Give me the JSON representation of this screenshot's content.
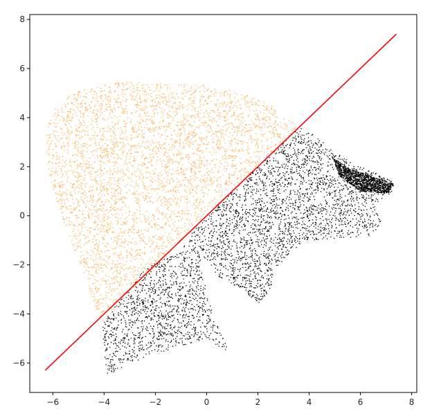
{
  "chart_data": {
    "type": "scatter",
    "title": "",
    "xlabel": "",
    "ylabel": "",
    "xlim": [
      -6.9,
      8.2
    ],
    "ylim": [
      -7.2,
      8.2
    ],
    "xticks": [
      -6,
      -4,
      -2,
      0,
      2,
      4,
      6,
      8
    ],
    "yticks": [
      -6,
      -4,
      -2,
      0,
      2,
      4,
      6,
      8
    ],
    "xtick_labels": [
      "−6",
      "−4",
      "−2",
      "0",
      "2",
      "4",
      "6",
      "8"
    ],
    "ytick_labels": [
      "−6",
      "−4",
      "−2",
      "0",
      "2",
      "4",
      "6",
      "8"
    ],
    "grid": false,
    "legend": "none",
    "series": [
      {
        "kind": "scatter",
        "color": "#ffbf70",
        "description_points": "dense point cloud above the diagonal line; bounding outline (x, y)",
        "outline": [
          [
            -4.1,
            -4.4
          ],
          [
            -4.5,
            -3.2
          ],
          [
            -5.0,
            -1.8
          ],
          [
            -5.6,
            -0.2
          ],
          [
            -6.1,
            1.5
          ],
          [
            -6.3,
            2.8
          ],
          [
            -6.25,
            3.6
          ],
          [
            -5.9,
            4.4
          ],
          [
            -5.2,
            5.0
          ],
          [
            -4.2,
            5.35
          ],
          [
            -3.0,
            5.45
          ],
          [
            -1.5,
            5.42
          ],
          [
            0.0,
            5.3
          ],
          [
            1.5,
            5.0
          ],
          [
            2.6,
            4.45
          ],
          [
            3.6,
            3.6
          ],
          [
            -0.5,
            -0.5
          ],
          [
            -4.1,
            -4.4
          ]
        ],
        "count": 2600
      },
      {
        "kind": "scatter",
        "color": "#000000",
        "description_points": "dense point cloud below the diagonal line; polygon regions (x, y)",
        "regions": [
          [
            [
              -0.5,
              -0.5
            ],
            [
              3.6,
              3.6
            ],
            [
              4.2,
              3.3
            ],
            [
              5.0,
              2.6
            ],
            [
              6.0,
              2.0
            ],
            [
              6.9,
              1.7
            ],
            [
              7.35,
              1.3
            ],
            [
              7.25,
              0.8
            ],
            [
              6.5,
              0.5
            ],
            [
              6.8,
              -0.2
            ],
            [
              6.5,
              -0.8
            ],
            [
              5.5,
              -0.9
            ],
            [
              3.8,
              -1.0
            ],
            [
              2.6,
              -2.2
            ],
            [
              2.5,
              -3.0
            ],
            [
              2.0,
              -3.6
            ],
            [
              1.4,
              -3.0
            ],
            [
              0.5,
              -2.5
            ],
            [
              -0.2,
              -1.6
            ]
          ],
          [
            [
              -0.5,
              -0.5
            ],
            [
              -1.0,
              -1.5
            ],
            [
              -2.0,
              -1.9
            ],
            [
              -2.5,
              -2.3
            ],
            [
              -4.1,
              -4.4
            ],
            [
              -3.9,
              -6.5
            ],
            [
              -2.5,
              -5.8
            ],
            [
              -1.0,
              -5.3
            ],
            [
              0.0,
              -5.0
            ],
            [
              0.9,
              -5.6
            ],
            [
              0.3,
              -4.2
            ],
            [
              0.0,
              -3.2
            ],
            [
              -0.2,
              -2.0
            ]
          ],
          [
            [
              4.9,
              2.4
            ],
            [
              5.6,
              1.9
            ],
            [
              6.5,
              1.6
            ],
            [
              7.3,
              1.3
            ],
            [
              7.1,
              0.9
            ],
            [
              6.0,
              1.0
            ],
            [
              5.2,
              1.6
            ]
          ]
        ],
        "count": 5200
      },
      {
        "kind": "line",
        "color": "#ff0000",
        "x": [
          -6.3,
          7.4
        ],
        "y": [
          -6.3,
          7.4
        ]
      }
    ]
  }
}
